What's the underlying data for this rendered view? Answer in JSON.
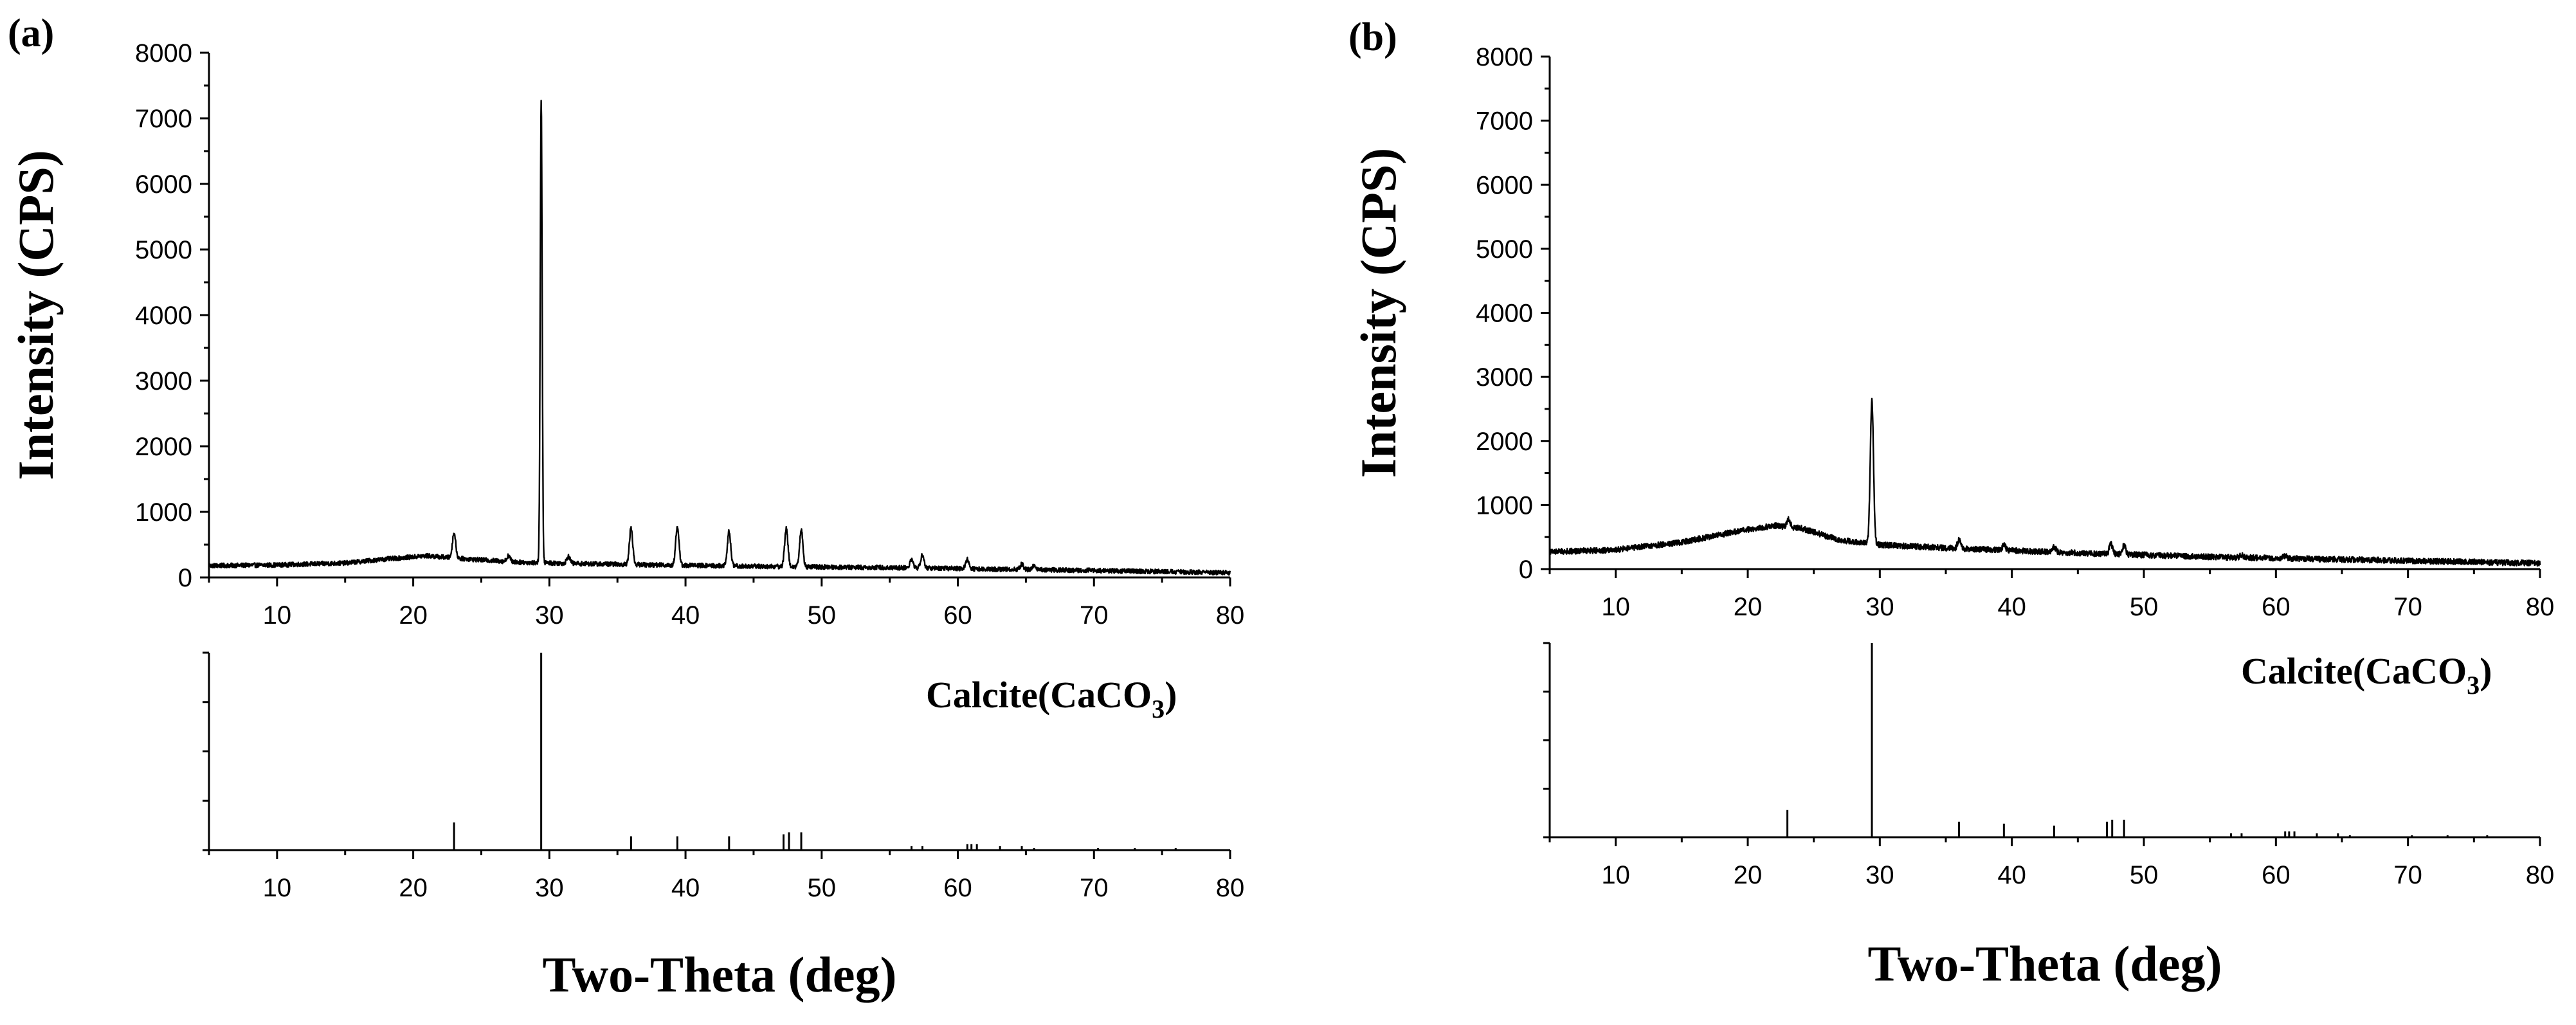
{
  "chart_data": [
    {
      "type": "line",
      "panel_label": "(a)",
      "ylabel": "Intensity (CPS)",
      "xlabel": "Two-Theta (deg)",
      "xlim": [
        5,
        80
      ],
      "ylim": [
        0,
        8000
      ],
      "xticks": [
        "10",
        "20",
        "30",
        "40",
        "50",
        "60",
        "70",
        "80"
      ],
      "yticks": [
        "0",
        "1000",
        "2000",
        "3000",
        "4000",
        "5000",
        "6000",
        "7000",
        "8000"
      ],
      "background": [
        [
          5,
          180
        ],
        [
          10,
          190
        ],
        [
          15,
          220
        ],
        [
          18,
          280
        ],
        [
          21,
          330
        ],
        [
          24,
          280
        ],
        [
          28,
          230
        ],
        [
          35,
          200
        ],
        [
          45,
          170
        ],
        [
          55,
          150
        ],
        [
          65,
          120
        ],
        [
          75,
          90
        ],
        [
          80,
          70
        ]
      ],
      "noise_amplitude": 35,
      "peaks": [
        [
          23.0,
          380
        ],
        [
          27.0,
          90
        ],
        [
          29.4,
          7050
        ],
        [
          31.4,
          110
        ],
        [
          36.0,
          560
        ],
        [
          39.4,
          590
        ],
        [
          43.2,
          530
        ],
        [
          47.4,
          580
        ],
        [
          48.5,
          560
        ],
        [
          56.6,
          130
        ],
        [
          57.4,
          200
        ],
        [
          60.7,
          140
        ],
        [
          64.7,
          80
        ],
        [
          65.6,
          70
        ]
      ],
      "reference": {
        "label": "Calcite(CaCO",
        "label_subscript": "3",
        "label_suffix": ")",
        "sticks": [
          [
            23.0,
            14
          ],
          [
            29.4,
            100
          ],
          [
            36.0,
            7
          ],
          [
            39.4,
            7
          ],
          [
            43.2,
            7
          ],
          [
            47.2,
            8
          ],
          [
            47.6,
            9
          ],
          [
            48.5,
            9
          ],
          [
            56.6,
            2
          ],
          [
            57.4,
            2
          ],
          [
            60.7,
            3
          ],
          [
            61.0,
            3
          ],
          [
            61.4,
            3
          ],
          [
            63.1,
            2
          ],
          [
            64.7,
            2
          ],
          [
            65.6,
            1
          ],
          [
            70.3,
            1
          ],
          [
            73.0,
            1
          ],
          [
            76.0,
            1
          ]
        ]
      }
    },
    {
      "type": "line",
      "panel_label": "(b)",
      "ylabel": "Intensity (CPS)",
      "xlabel": "Two-Theta (deg)",
      "xlim": [
        5,
        80
      ],
      "ylim": [
        0,
        8000
      ],
      "xticks": [
        "10",
        "20",
        "30",
        "40",
        "50",
        "60",
        "70",
        "80"
      ],
      "yticks": [
        "0",
        "1000",
        "2000",
        "3000",
        "4000",
        "5000",
        "6000",
        "7000",
        "8000"
      ],
      "background": [
        [
          5,
          270
        ],
        [
          10,
          300
        ],
        [
          15,
          420
        ],
        [
          19,
          580
        ],
        [
          22,
          680
        ],
        [
          24,
          640
        ],
        [
          27,
          450
        ],
        [
          30,
          380
        ],
        [
          35,
          330
        ],
        [
          45,
          250
        ],
        [
          55,
          190
        ],
        [
          65,
          150
        ],
        [
          75,
          110
        ],
        [
          80,
          90
        ]
      ],
      "noise_amplitude": 45,
      "peaks": [
        [
          23.1,
          120
        ],
        [
          29.4,
          2250
        ],
        [
          36.0,
          130
        ],
        [
          39.4,
          80
        ],
        [
          43.2,
          90
        ],
        [
          47.5,
          160
        ],
        [
          48.5,
          140
        ],
        [
          57.4,
          40
        ],
        [
          60.7,
          40
        ]
      ],
      "reference": {
        "label": "Calcite(CaCO",
        "label_subscript": "3",
        "label_suffix": ")",
        "sticks": [
          [
            23.0,
            14
          ],
          [
            29.4,
            100
          ],
          [
            36.0,
            8
          ],
          [
            39.4,
            7
          ],
          [
            43.2,
            6
          ],
          [
            47.2,
            8
          ],
          [
            47.6,
            9
          ],
          [
            48.5,
            9
          ],
          [
            56.6,
            2
          ],
          [
            57.4,
            2
          ],
          [
            60.7,
            3
          ],
          [
            61.0,
            3
          ],
          [
            61.4,
            3
          ],
          [
            63.1,
            2
          ],
          [
            64.7,
            2
          ],
          [
            65.6,
            1
          ],
          [
            70.3,
            1
          ],
          [
            73.0,
            1
          ],
          [
            76.0,
            1
          ]
        ]
      }
    }
  ]
}
